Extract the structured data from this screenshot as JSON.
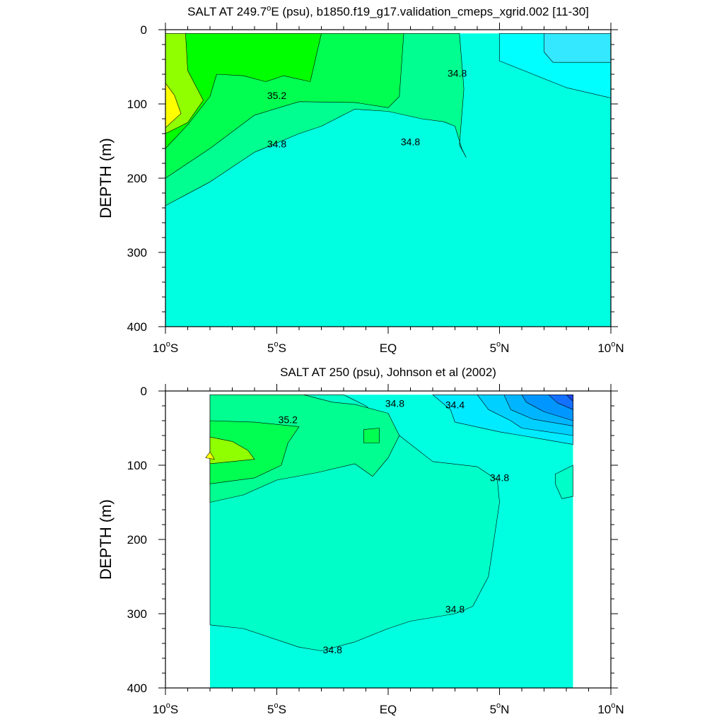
{
  "chart_data": [
    {
      "type": "contour",
      "title": "SALT AT 249.7°E (psu), b1850.f19_g17.validation_cmeps_xgrid.002 [11-30]",
      "title_parts": [
        "SALT AT 249.7",
        "o",
        "E (psu), b1850.f19_g17.validation_cmeps_xgrid.002 [11-30]"
      ],
      "ylabel": "DEPTH (m)",
      "xlim": [
        -10,
        10
      ],
      "ylim": [
        0,
        400
      ],
      "y_inverted": true,
      "x_ticks": [
        {
          "deg": "10",
          "hemi": "S",
          "value": -10
        },
        {
          "deg": "5",
          "hemi": "S",
          "value": -5
        },
        {
          "deg": "",
          "hemi": "EQ",
          "value": 0
        },
        {
          "deg": "5",
          "hemi": "N",
          "value": 5
        },
        {
          "deg": "10",
          "hemi": "N",
          "value": 10
        }
      ],
      "y_ticks": [
        "0",
        "100",
        "200",
        "300",
        "400"
      ],
      "y_tick_values": [
        0,
        100,
        200,
        300,
        400
      ],
      "data_extent": {
        "x": [
          -10,
          10
        ],
        "y": [
          5,
          400
        ]
      },
      "background_level": 34.8,
      "levels": [
        {
          "level": 34.6,
          "color": "#00ffff",
          "outline": [
            [
              5,
              5
            ],
            [
              10,
              5
            ],
            [
              10,
              92
            ],
            [
              8,
              78
            ],
            [
              5,
              42
            ],
            [
              5,
              5
            ]
          ]
        },
        {
          "level": 34.4,
          "color": "#33e8ff",
          "outline": [
            [
              7,
              5
            ],
            [
              10,
              5
            ],
            [
              10,
              44
            ],
            [
              7.4,
              44
            ],
            [
              7,
              30
            ],
            [
              7,
              5
            ]
          ]
        },
        {
          "level": 35.0,
          "color": "#00ff90",
          "outline": [
            [
              -10,
              5
            ],
            [
              -10,
              237
            ],
            [
              -8,
              205
            ],
            [
              -6,
              165
            ],
            [
              -4,
              140
            ],
            [
              -3,
              130
            ],
            [
              -1.5,
              107
            ],
            [
              0,
              110
            ],
            [
              1.5,
              120
            ],
            [
              2.5,
              124
            ],
            [
              3,
              130
            ],
            [
              3.3,
              160
            ],
            [
              3.5,
              172
            ],
            [
              3.2,
              155
            ],
            [
              3.4,
              80
            ],
            [
              3.2,
              5
            ]
          ]
        },
        {
          "level": 35.2,
          "color": "#00ff50",
          "outline": [
            [
              -10,
              5
            ],
            [
              -10,
              200
            ],
            [
              -8,
              160
            ],
            [
              -6,
              115
            ],
            [
              -4,
              97
            ],
            [
              -1.5,
              98
            ],
            [
              0,
              105
            ],
            [
              0.5,
              90
            ],
            [
              0.7,
              5
            ]
          ]
        },
        {
          "level": 35.4,
          "color": "#00ff00",
          "outline": [
            [
              -10,
              5
            ],
            [
              -10,
              160
            ],
            [
              -9,
              128
            ],
            [
              -8,
              90
            ],
            [
              -7.7,
              60
            ],
            [
              -6.5,
              62
            ],
            [
              -5.5,
              70
            ],
            [
              -4.7,
              62
            ],
            [
              -3.5,
              70
            ],
            [
              -3,
              5
            ]
          ]
        },
        {
          "level": 35.6,
          "color": "#90ff00",
          "outline": [
            [
              -10,
              5
            ],
            [
              -10,
              140
            ],
            [
              -9,
              125
            ],
            [
              -8.3,
              95
            ],
            [
              -9,
              55
            ],
            [
              -9.1,
              5
            ]
          ]
        },
        {
          "level": 35.8,
          "color": "#ffff00",
          "outline": [
            [
              -10,
              72
            ],
            [
              -10,
              132
            ],
            [
              -9.3,
              113
            ],
            [
              -9.6,
              88
            ],
            [
              -10,
              72
            ]
          ]
        }
      ],
      "contour_labels": [
        {
          "text": "35.2",
          "x": -5,
          "y": 90
        },
        {
          "text": "34.8",
          "x": -5,
          "y": 155
        },
        {
          "text": "34.8",
          "x": 1,
          "y": 152
        },
        {
          "text": "34.8",
          "x": 3.1,
          "y": 60
        }
      ]
    },
    {
      "type": "contour",
      "title": "SALT AT 250 (psu), Johnson et al (2002)",
      "ylabel": "DEPTH (m)",
      "xlim": [
        -10,
        10
      ],
      "ylim": [
        0,
        400
      ],
      "y_inverted": true,
      "x_ticks": [
        {
          "deg": "10",
          "hemi": "S",
          "value": -10
        },
        {
          "deg": "5",
          "hemi": "S",
          "value": -5
        },
        {
          "deg": "",
          "hemi": "EQ",
          "value": 0
        },
        {
          "deg": "5",
          "hemi": "N",
          "value": 5
        },
        {
          "deg": "10",
          "hemi": "N",
          "value": 10
        }
      ],
      "y_ticks": [
        "0",
        "100",
        "200",
        "300",
        "400"
      ],
      "y_tick_values": [
        0,
        100,
        200,
        300,
        400
      ],
      "data_extent": {
        "x": [
          -8,
          8.3
        ],
        "y": [
          5,
          400
        ]
      },
      "background_level": 34.6,
      "levels": [
        {
          "level": 34.8,
          "color": "#00ffc8",
          "outline": [
            [
              -8,
              5
            ],
            [
              -8,
              315
            ],
            [
              -6.5,
              320
            ],
            [
              -4,
              345
            ],
            [
              -3,
              350
            ],
            [
              -1.5,
              338
            ],
            [
              0,
              320
            ],
            [
              1,
              310
            ],
            [
              3,
              300
            ],
            [
              3.8,
              290
            ],
            [
              4.5,
              250
            ],
            [
              5,
              150
            ],
            [
              4.9,
              120
            ],
            [
              4,
              102
            ],
            [
              2,
              95
            ],
            [
              0.5,
              60
            ],
            [
              -1,
              20
            ],
            [
              -2,
              5
            ]
          ]
        },
        {
          "level": 34.4,
          "color": "#00ebff",
          "outline": [
            [
              2,
              5
            ],
            [
              8.3,
              5
            ],
            [
              8.3,
              72
            ],
            [
              6,
              60
            ],
            [
              5,
              55
            ],
            [
              3,
              42
            ],
            [
              2.8,
              25
            ],
            [
              2,
              5
            ]
          ]
        },
        {
          "level": 34.2,
          "color": "#00d0ff",
          "outline": [
            [
              4,
              5
            ],
            [
              8.3,
              5
            ],
            [
              8.3,
              60
            ],
            [
              6,
              50
            ],
            [
              5.5,
              40
            ],
            [
              4.5,
              25
            ],
            [
              4,
              5
            ]
          ]
        },
        {
          "level": 34.0,
          "color": "#00b5ff",
          "outline": [
            [
              5.2,
              5
            ],
            [
              8.3,
              5
            ],
            [
              8.3,
              47
            ],
            [
              6.5,
              38
            ],
            [
              5.5,
              25
            ],
            [
              5.2,
              5
            ]
          ]
        },
        {
          "level": 33.8,
          "color": "#0096ff",
          "outline": [
            [
              6,
              5
            ],
            [
              8.3,
              5
            ],
            [
              8.3,
              40
            ],
            [
              7,
              28
            ],
            [
              6.2,
              15
            ],
            [
              6,
              5
            ]
          ]
        },
        {
          "level": 33.6,
          "color": "#1470ff",
          "outline": [
            [
              7.2,
              5
            ],
            [
              8.3,
              5
            ],
            [
              8.3,
              25
            ],
            [
              7.6,
              16
            ],
            [
              7.2,
              5
            ]
          ]
        },
        {
          "level": 33.4,
          "color": "#1a46e6",
          "outline": [
            [
              8,
              5
            ],
            [
              8.3,
              5
            ],
            [
              8.3,
              14
            ],
            [
              8,
              5
            ]
          ]
        },
        {
          "level": 35.0,
          "color": "#00ff90",
          "outline": [
            [
              -8,
              5
            ],
            [
              -8,
              150
            ],
            [
              -6.5,
              140
            ],
            [
              -5,
              120
            ],
            [
              -3.2,
              110
            ],
            [
              -1.5,
              98
            ],
            [
              -0.7,
              115
            ],
            [
              0,
              90
            ],
            [
              0.5,
              60
            ],
            [
              0,
              30
            ],
            [
              -1.5,
              18
            ],
            [
              -2.5,
              15
            ],
            [
              -3.8,
              5
            ]
          ]
        },
        {
          "level": 34.8,
          "color": "#00ffc8",
          "outline": [
            [
              7.5,
              112
            ],
            [
              8.3,
              100
            ],
            [
              8.3,
              142
            ],
            [
              7.8,
              145
            ],
            [
              7.5,
              125
            ]
          ]
        },
        {
          "level": 35.2,
          "color": "#00ff50",
          "outline": [
            [
              -8,
              40
            ],
            [
              -8,
              125
            ],
            [
              -6,
              117
            ],
            [
              -4.8,
              100
            ],
            [
              -4.5,
              70
            ],
            [
              -4,
              48
            ],
            [
              -6,
              42
            ]
          ]
        },
        {
          "level": 35.2,
          "color": "#00ff50",
          "outline": [
            [
              -1.1,
              52
            ],
            [
              -0.4,
              50
            ],
            [
              -0.4,
              70
            ],
            [
              -1.1,
              70
            ]
          ]
        },
        {
          "level": 35.4,
          "color": "#90ff00",
          "outline": [
            [
              -8,
              62
            ],
            [
              -8,
              98
            ],
            [
              -6,
              92
            ],
            [
              -6.3,
              80
            ],
            [
              -7,
              68
            ]
          ]
        },
        {
          "level": 35.6,
          "color": "#ffff00",
          "outline": [
            [
              -8,
              82
            ],
            [
              -8.2,
              90
            ],
            [
              -7.8,
              92
            ],
            [
              -8,
              82
            ]
          ]
        }
      ],
      "contour_labels": [
        {
          "text": "35.2",
          "x": -4.5,
          "y": 40
        },
        {
          "text": "34.8",
          "x": 0.3,
          "y": 18
        },
        {
          "text": "34.4",
          "x": 3,
          "y": 20
        },
        {
          "text": "34.8",
          "x": 5,
          "y": 118
        },
        {
          "text": "34.8",
          "x": 3,
          "y": 295
        },
        {
          "text": "34.8",
          "x": -2.5,
          "y": 350
        }
      ]
    }
  ]
}
